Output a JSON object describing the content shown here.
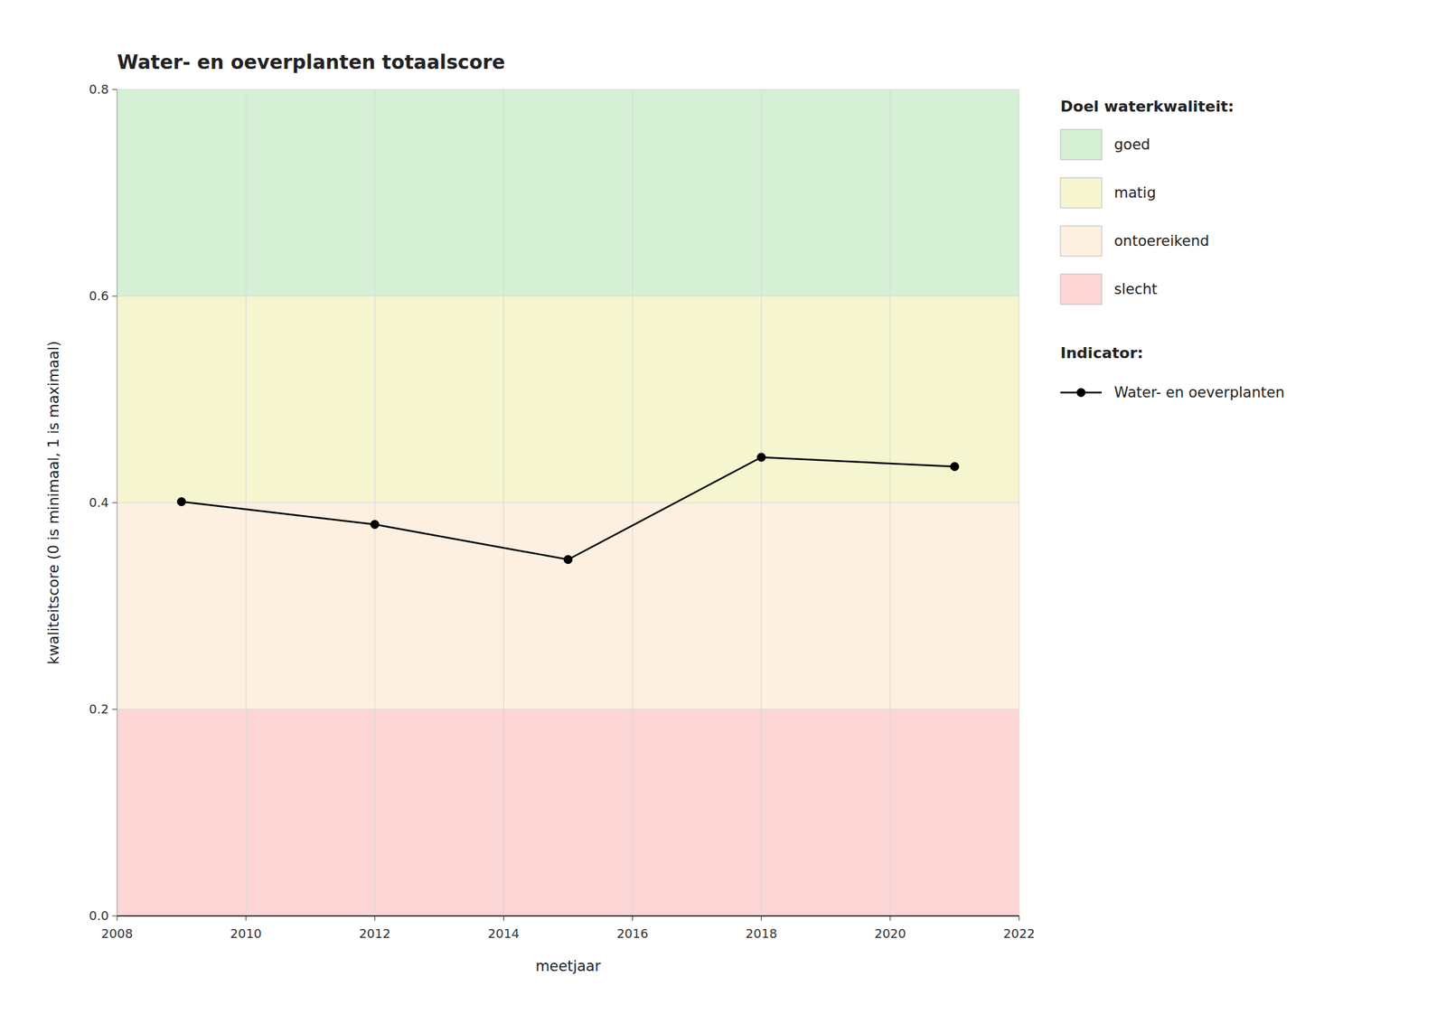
{
  "chart_data": {
    "type": "line",
    "title": "Water- en oeverplanten totaalscore",
    "xlabel": "meetjaar",
    "ylabel": "kwaliteitscore (0 is minimaal, 1 is maximaal)",
    "x": [
      2009,
      2012,
      2015,
      2018,
      2021
    ],
    "series": [
      {
        "name": "Water- en oeverplanten",
        "color": "#000000",
        "marker": "circle",
        "line_style": "solid",
        "values": [
          0.401,
          0.379,
          0.345,
          0.444,
          0.435
        ]
      }
    ],
    "xlim": [
      2008,
      2022
    ],
    "ylim": [
      0.0,
      0.8
    ],
    "xticks": [
      2008,
      2010,
      2012,
      2014,
      2016,
      2018,
      2020,
      2022
    ],
    "yticks": [
      {
        "value": 0.0,
        "label": "0.0"
      },
      0.2,
      0.4,
      0.6,
      0.8
    ],
    "grid": true,
    "legend": "right",
    "legend_title": "Indicator:",
    "zones_title": "Doel waterkwaliteit:",
    "zones": [
      {
        "ymin": 0.6,
        "ymax": 0.8,
        "color": "#d5f0d5",
        "label": "goed"
      },
      {
        "ymin": 0.4,
        "ymax": 0.6,
        "color": "#f5f5d0",
        "label": "matig"
      },
      {
        "ymin": 0.2,
        "ymax": 0.4,
        "color": "#fdf0e0",
        "label": "ontoereikend"
      },
      {
        "ymin": 0.0,
        "ymax": 0.2,
        "color": "#fcd5d5",
        "label": "slecht"
      }
    ]
  }
}
